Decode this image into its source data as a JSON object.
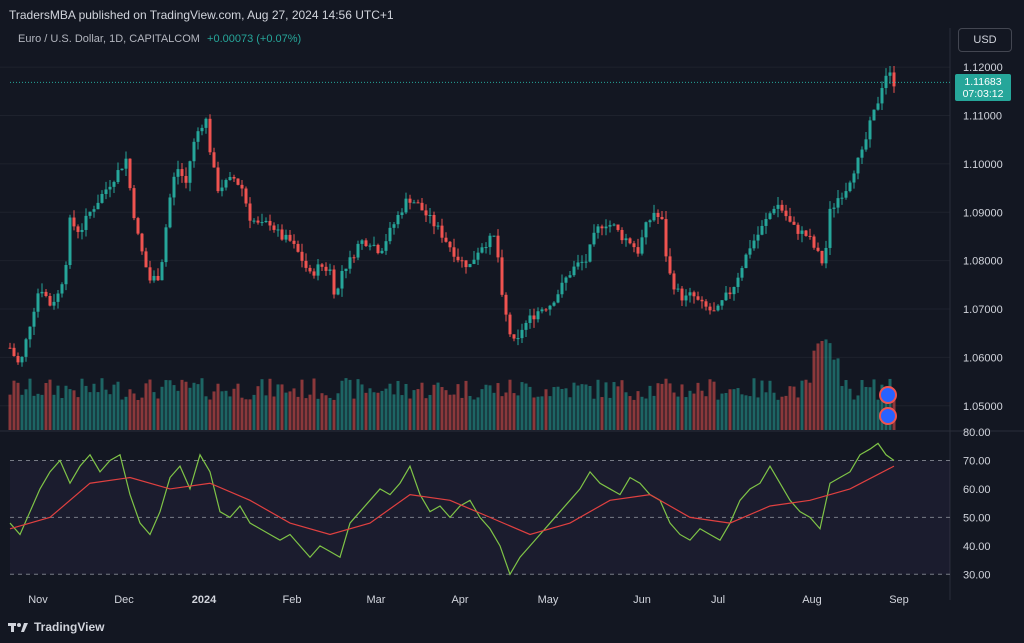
{
  "header": {
    "publisher": "TradersMBA published on TradingView.com, Aug 27, 2024 14:56 UTC+1"
  },
  "legend": {
    "symbol": "Euro / U.S. Dollar, 1D, CAPITALCOM",
    "change": "+0.00073 (+0.07%)"
  },
  "currency_button": "USD",
  "last_price": {
    "value": "1.11683",
    "countdown": "07:03:12"
  },
  "footer": {
    "brand": "TradingView"
  },
  "colors": {
    "bg": "#131722",
    "up": "#26a69a",
    "down": "#ef5350",
    "rsi_line": "#7fc447",
    "rsi_ma": "#e04040",
    "rsi_band": "#7e57c2"
  },
  "chart_data": [
    {
      "type": "candlestick",
      "title": "Euro / U.S. Dollar, 1D, CAPITALCOM",
      "ylim": [
        1.045,
        1.1225
      ],
      "y_ticks": [
        "1.12000",
        "1.11000",
        "1.10000",
        "1.09000",
        "1.08000",
        "1.07000",
        "1.06000",
        "1.05000"
      ],
      "x_ticks": [
        "Nov",
        "Dec",
        "2024",
        "Feb",
        "Mar",
        "Apr",
        "May",
        "Jun",
        "Jul",
        "Aug",
        "Sep"
      ],
      "close_path": [
        [
          0,
          1.062
        ],
        [
          10,
          1.058
        ],
        [
          20,
          1.067
        ],
        [
          30,
          1.075
        ],
        [
          40,
          1.071
        ],
        [
          48,
          1.073
        ],
        [
          55,
          1.078
        ],
        [
          60,
          1.088
        ],
        [
          70,
          1.086
        ],
        [
          80,
          1.09
        ],
        [
          90,
          1.093
        ],
        [
          100,
          1.096
        ],
        [
          110,
          1.099
        ],
        [
          116,
          1.101
        ],
        [
          122,
          1.092
        ],
        [
          128,
          1.085
        ],
        [
          134,
          1.08
        ],
        [
          140,
          1.076
        ],
        [
          150,
          1.077
        ],
        [
          156,
          1.087
        ],
        [
          162,
          1.096
        ],
        [
          168,
          1.099
        ],
        [
          176,
          1.096
        ],
        [
          182,
          1.103
        ],
        [
          190,
          1.108
        ],
        [
          196,
          1.109
        ],
        [
          202,
          1.1
        ],
        [
          208,
          1.095
        ],
        [
          216,
          1.096
        ],
        [
          224,
          1.097
        ],
        [
          232,
          1.095
        ],
        [
          240,
          1.089
        ],
        [
          250,
          1.087
        ],
        [
          260,
          1.088
        ],
        [
          270,
          1.085
        ],
        [
          280,
          1.084
        ],
        [
          290,
          1.081
        ],
        [
          300,
          1.077
        ],
        [
          310,
          1.079
        ],
        [
          320,
          1.078
        ],
        [
          326,
          1.072
        ],
        [
          332,
          1.078
        ],
        [
          340,
          1.08
        ],
        [
          350,
          1.084
        ],
        [
          360,
          1.084
        ],
        [
          370,
          1.082
        ],
        [
          380,
          1.086
        ],
        [
          390,
          1.09
        ],
        [
          398,
          1.093
        ],
        [
          406,
          1.092
        ],
        [
          414,
          1.09
        ],
        [
          422,
          1.088
        ],
        [
          430,
          1.086
        ],
        [
          440,
          1.083
        ],
        [
          450,
          1.08
        ],
        [
          460,
          1.079
        ],
        [
          470,
          1.083
        ],
        [
          478,
          1.084
        ],
        [
          486,
          1.085
        ],
        [
          492,
          1.072
        ],
        [
          500,
          1.065
        ],
        [
          506,
          1.062
        ],
        [
          512,
          1.066
        ],
        [
          520,
          1.068
        ],
        [
          530,
          1.07
        ],
        [
          540,
          1.071
        ],
        [
          550,
          1.074
        ],
        [
          558,
          1.077
        ],
        [
          566,
          1.079
        ],
        [
          576,
          1.08
        ],
        [
          586,
          1.086
        ],
        [
          594,
          1.088
        ],
        [
          604,
          1.087
        ],
        [
          612,
          1.085
        ],
        [
          620,
          1.084
        ],
        [
          628,
          1.082
        ],
        [
          636,
          1.087
        ],
        [
          644,
          1.09
        ],
        [
          652,
          1.088
        ],
        [
          658,
          1.078
        ],
        [
          666,
          1.074
        ],
        [
          674,
          1.072
        ],
        [
          682,
          1.073
        ],
        [
          690,
          1.071
        ],
        [
          698,
          1.07
        ],
        [
          706,
          1.069
        ],
        [
          714,
          1.072
        ],
        [
          722,
          1.074
        ],
        [
          730,
          1.078
        ],
        [
          740,
          1.083
        ],
        [
          750,
          1.086
        ],
        [
          758,
          1.089
        ],
        [
          766,
          1.092
        ],
        [
          774,
          1.09
        ],
        [
          782,
          1.087
        ],
        [
          790,
          1.086
        ],
        [
          798,
          1.085
        ],
        [
          806,
          1.082
        ],
        [
          814,
          1.079
        ],
        [
          820,
          1.09
        ],
        [
          828,
          1.093
        ],
        [
          836,
          1.095
        ],
        [
          844,
          1.099
        ],
        [
          852,
          1.102
        ],
        [
          860,
          1.108
        ],
        [
          868,
          1.113
        ],
        [
          874,
          1.118
        ],
        [
          878,
          1.119
        ],
        [
          884,
          1.11683
        ]
      ],
      "volume_note": "volume histogram shown at bottom of price pane"
    },
    {
      "type": "line",
      "title": "",
      "ylim": [
        28,
        80
      ],
      "y_ticks": [
        "80.00",
        "70.00",
        "60.00",
        "50.00",
        "40.00",
        "30.00"
      ],
      "bands": [
        30,
        50,
        70
      ],
      "series": [
        {
          "name": "",
          "values": [
            [
              0,
              48
            ],
            [
              10,
              44
            ],
            [
              20,
              52
            ],
            [
              30,
              60
            ],
            [
              40,
              66
            ],
            [
              50,
              70
            ],
            [
              60,
              62
            ],
            [
              70,
              68
            ],
            [
              80,
              72
            ],
            [
              90,
              66
            ],
            [
              100,
              70
            ],
            [
              110,
              72
            ],
            [
              120,
              58
            ],
            [
              130,
              48
            ],
            [
              140,
              44
            ],
            [
              150,
              52
            ],
            [
              160,
              64
            ],
            [
              170,
              68
            ],
            [
              180,
              60
            ],
            [
              190,
              72
            ],
            [
              200,
              66
            ],
            [
              210,
              52
            ],
            [
              220,
              50
            ],
            [
              230,
              54
            ],
            [
              240,
              48
            ],
            [
              250,
              46
            ],
            [
              260,
              44
            ],
            [
              270,
              42
            ],
            [
              280,
              44
            ],
            [
              290,
              40
            ],
            [
              300,
              36
            ],
            [
              310,
              40
            ],
            [
              320,
              38
            ],
            [
              330,
              36
            ],
            [
              340,
              48
            ],
            [
              350,
              52
            ],
            [
              360,
              56
            ],
            [
              370,
              60
            ],
            [
              380,
              58
            ],
            [
              390,
              62
            ],
            [
              400,
              68
            ],
            [
              410,
              58
            ],
            [
              420,
              52
            ],
            [
              430,
              54
            ],
            [
              440,
              50
            ],
            [
              450,
              54
            ],
            [
              460,
              56
            ],
            [
              470,
              50
            ],
            [
              480,
              46
            ],
            [
              490,
              40
            ],
            [
              500,
              30
            ],
            [
              510,
              36
            ],
            [
              520,
              40
            ],
            [
              530,
              44
            ],
            [
              540,
              48
            ],
            [
              550,
              52
            ],
            [
              560,
              56
            ],
            [
              570,
              60
            ],
            [
              580,
              66
            ],
            [
              590,
              62
            ],
            [
              600,
              60
            ],
            [
              610,
              58
            ],
            [
              620,
              64
            ],
            [
              630,
              62
            ],
            [
              640,
              58
            ],
            [
              650,
              56
            ],
            [
              660,
              48
            ],
            [
              670,
              44
            ],
            [
              680,
              42
            ],
            [
              690,
              46
            ],
            [
              700,
              44
            ],
            [
              710,
              42
            ],
            [
              720,
              48
            ],
            [
              730,
              56
            ],
            [
              740,
              60
            ],
            [
              750,
              62
            ],
            [
              760,
              68
            ],
            [
              770,
              62
            ],
            [
              780,
              56
            ],
            [
              790,
              52
            ],
            [
              800,
              50
            ],
            [
              810,
              46
            ],
            [
              820,
              62
            ],
            [
              830,
              64
            ],
            [
              840,
              66
            ],
            [
              850,
              72
            ],
            [
              860,
              74
            ],
            [
              868,
              76
            ],
            [
              876,
              72
            ],
            [
              884,
              70
            ]
          ]
        },
        {
          "name": "",
          "values": [
            [
              0,
              46
            ],
            [
              40,
              50
            ],
            [
              80,
              62
            ],
            [
              120,
              64
            ],
            [
              160,
              60
            ],
            [
              200,
              62
            ],
            [
              240,
              56
            ],
            [
              280,
              48
            ],
            [
              320,
              44
            ],
            [
              360,
              48
            ],
            [
              400,
              58
            ],
            [
              440,
              56
            ],
            [
              480,
              50
            ],
            [
              520,
              44
            ],
            [
              560,
              48
            ],
            [
              600,
              56
            ],
            [
              640,
              58
            ],
            [
              680,
              50
            ],
            [
              720,
              48
            ],
            [
              760,
              54
            ],
            [
              800,
              56
            ],
            [
              840,
              60
            ],
            [
              884,
              68
            ]
          ]
        }
      ]
    }
  ]
}
